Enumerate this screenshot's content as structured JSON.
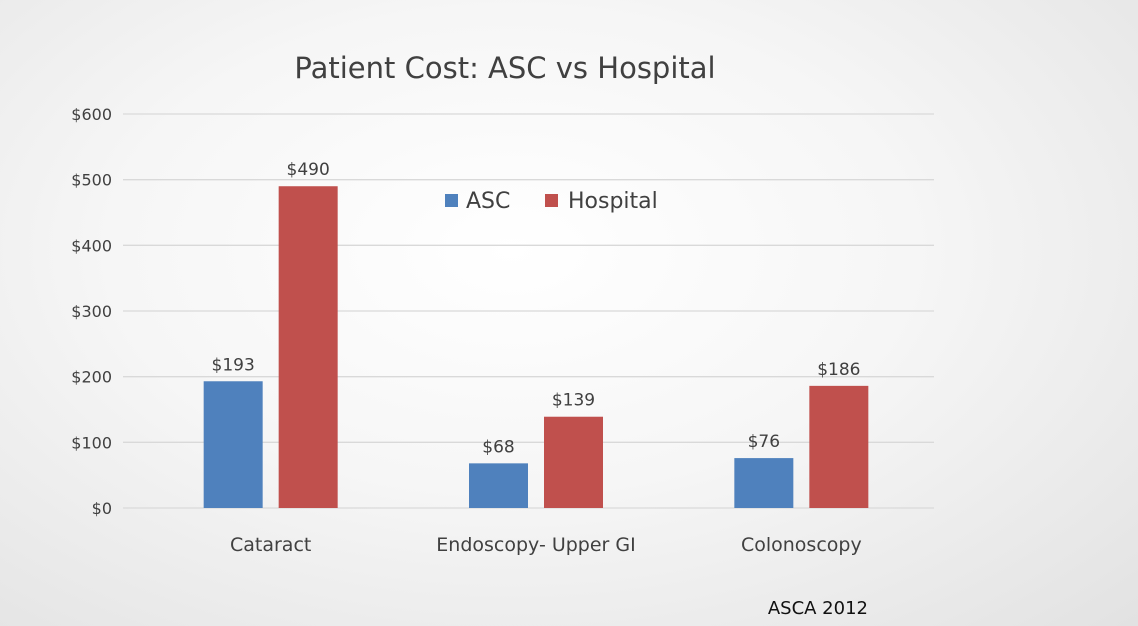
{
  "chart_data": {
    "type": "bar",
    "title": "Patient Cost: ASC vs Hospital",
    "categories": [
      "Cataract",
      "Endoscopy- Upper GI",
      "Colonoscopy"
    ],
    "series": [
      {
        "name": "ASC",
        "color": "#4f81bd",
        "values": [
          193,
          68,
          76
        ],
        "labels": [
          "$193",
          "$68",
          "$76"
        ]
      },
      {
        "name": "Hospital",
        "color": "#c0504d",
        "values": [
          490,
          139,
          186
        ],
        "labels": [
          "$490",
          "$139",
          "$186"
        ]
      }
    ],
    "ylim": [
      0,
      600
    ],
    "yticks": [
      0,
      100,
      200,
      300,
      400,
      500,
      600
    ],
    "ytick_labels": [
      "$0",
      "$100",
      "$200",
      "$300",
      "$400",
      "$500",
      "$600"
    ],
    "xlabel": "",
    "ylabel": "",
    "grid": true,
    "legend_position": "top-center"
  },
  "source": "ASCA 2012"
}
